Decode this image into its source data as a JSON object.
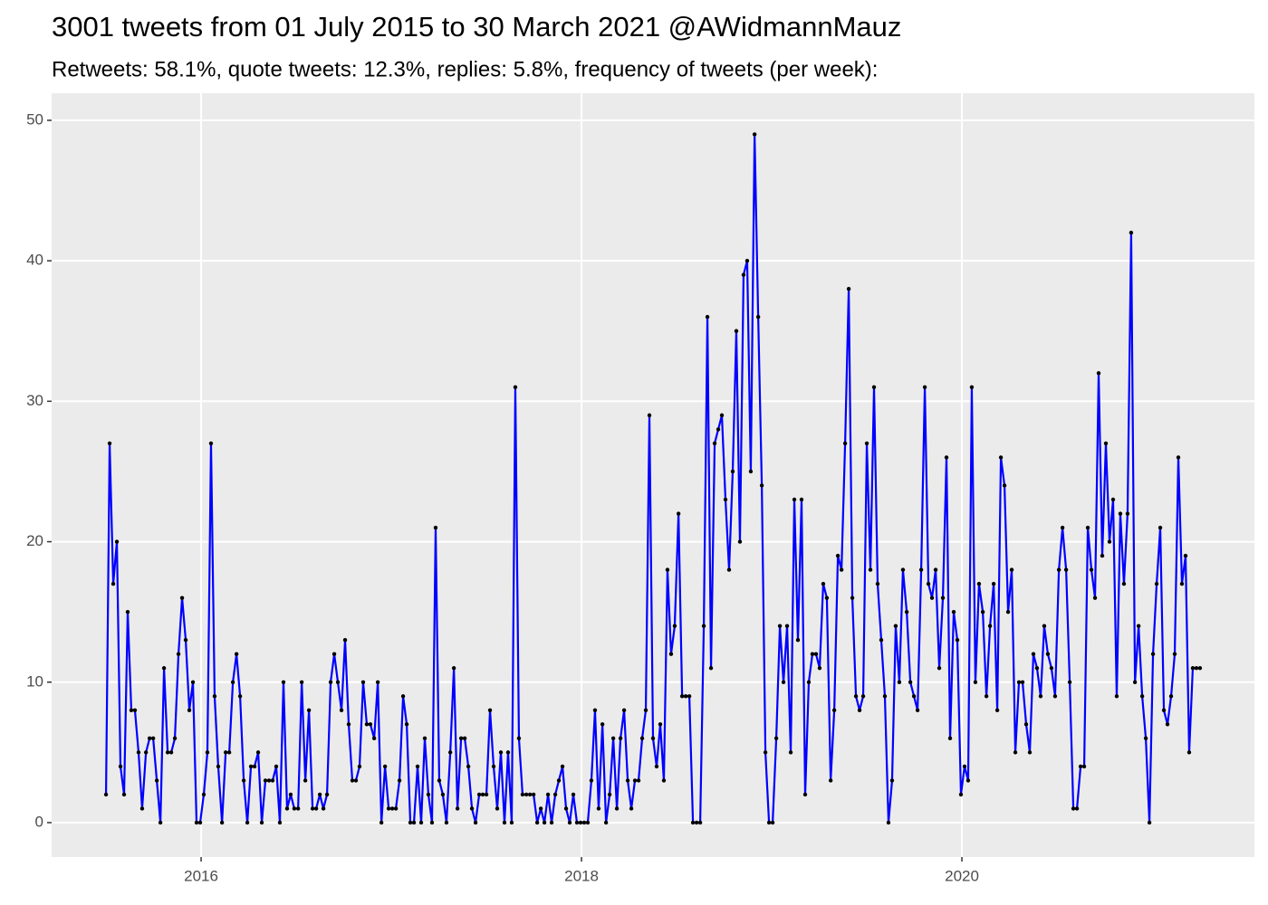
{
  "chart_data": {
    "type": "line",
    "title": "3001 tweets from 01 July 2015 to 30 March 2021 @AWidmannMauz",
    "subtitle": "Retweets: 58.1%, quote tweets: 12.3%, replies: 5.8%, frequency of tweets (per week):",
    "x": [
      2015.5,
      2015.519,
      2015.538,
      2015.557,
      2015.576,
      2015.595,
      2015.614,
      2015.633,
      2015.652,
      2015.671,
      2015.69,
      2015.71,
      2015.729,
      2015.748,
      2015.767,
      2015.786,
      2015.805,
      2015.824,
      2015.843,
      2015.862,
      2015.881,
      2015.9,
      2015.919,
      2015.938,
      2015.957,
      2015.976,
      2015.995,
      2016.014,
      2016.033,
      2016.052,
      2016.071,
      2016.09,
      2016.11,
      2016.129,
      2016.148,
      2016.167,
      2016.186,
      2016.205,
      2016.224,
      2016.243,
      2016.262,
      2016.281,
      2016.3,
      2016.319,
      2016.338,
      2016.357,
      2016.376,
      2016.395,
      2016.414,
      2016.433,
      2016.452,
      2016.471,
      2016.49,
      2016.51,
      2016.529,
      2016.548,
      2016.567,
      2016.586,
      2016.605,
      2016.624,
      2016.643,
      2016.662,
      2016.681,
      2016.7,
      2016.719,
      2016.738,
      2016.757,
      2016.776,
      2016.795,
      2016.814,
      2016.833,
      2016.852,
      2016.871,
      2016.89,
      2016.91,
      2016.929,
      2016.948,
      2016.967,
      2016.986,
      2017.005,
      2017.024,
      2017.043,
      2017.062,
      2017.081,
      2017.1,
      2017.119,
      2017.138,
      2017.157,
      2017.176,
      2017.195,
      2017.214,
      2017.233,
      2017.252,
      2017.271,
      2017.29,
      2017.31,
      2017.329,
      2017.348,
      2017.367,
      2017.386,
      2017.405,
      2017.424,
      2017.443,
      2017.462,
      2017.481,
      2017.5,
      2017.519,
      2017.538,
      2017.557,
      2017.576,
      2017.595,
      2017.614,
      2017.633,
      2017.652,
      2017.671,
      2017.69,
      2017.71,
      2017.729,
      2017.748,
      2017.767,
      2017.786,
      2017.805,
      2017.824,
      2017.843,
      2017.862,
      2017.881,
      2017.9,
      2017.919,
      2017.938,
      2017.957,
      2017.976,
      2017.995,
      2018.014,
      2018.033,
      2018.052,
      2018.071,
      2018.09,
      2018.11,
      2018.129,
      2018.148,
      2018.167,
      2018.186,
      2018.205,
      2018.224,
      2018.243,
      2018.262,
      2018.281,
      2018.3,
      2018.319,
      2018.338,
      2018.357,
      2018.376,
      2018.395,
      2018.414,
      2018.433,
      2018.452,
      2018.471,
      2018.49,
      2018.51,
      2018.529,
      2018.548,
      2018.567,
      2018.586,
      2018.605,
      2018.624,
      2018.643,
      2018.662,
      2018.681,
      2018.7,
      2018.719,
      2018.738,
      2018.757,
      2018.776,
      2018.795,
      2018.814,
      2018.833,
      2018.852,
      2018.871,
      2018.89,
      2018.91,
      2018.929,
      2018.948,
      2018.967,
      2018.986,
      2019.005,
      2019.024,
      2019.043,
      2019.062,
      2019.081,
      2019.1,
      2019.119,
      2019.138,
      2019.157,
      2019.176,
      2019.195,
      2019.214,
      2019.233,
      2019.252,
      2019.271,
      2019.29,
      2019.31,
      2019.329,
      2019.348,
      2019.367,
      2019.386,
      2019.405,
      2019.424,
      2019.443,
      2019.462,
      2019.481,
      2019.5,
      2019.519,
      2019.538,
      2019.557,
      2019.576,
      2019.595,
      2019.614,
      2019.633,
      2019.652,
      2019.671,
      2019.69,
      2019.71,
      2019.729,
      2019.748,
      2019.767,
      2019.786,
      2019.805,
      2019.824,
      2019.843,
      2019.862,
      2019.881,
      2019.9,
      2019.919,
      2019.938,
      2019.957,
      2019.976,
      2019.995,
      2020.014,
      2020.033,
      2020.052,
      2020.071,
      2020.09,
      2020.11,
      2020.129,
      2020.148,
      2020.167,
      2020.186,
      2020.205,
      2020.224,
      2020.243,
      2020.262,
      2020.281,
      2020.3,
      2020.319,
      2020.338,
      2020.357,
      2020.376,
      2020.395,
      2020.414,
      2020.433,
      2020.452,
      2020.471,
      2020.49,
      2020.51,
      2020.529,
      2020.548,
      2020.567,
      2020.586,
      2020.605,
      2020.624,
      2020.643,
      2020.662,
      2020.681,
      2020.7,
      2020.719,
      2020.738,
      2020.757,
      2020.776,
      2020.795,
      2020.814,
      2020.833,
      2020.852,
      2020.871,
      2020.89,
      2020.91,
      2020.929,
      2020.948,
      2020.967,
      2020.986,
      2021.005,
      2021.024,
      2021.043,
      2021.062,
      2021.081,
      2021.1,
      2021.119,
      2021.138,
      2021.157,
      2021.176,
      2021.195,
      2021.214,
      2021.233,
      2021.252
    ],
    "values": [
      2,
      27,
      17,
      20,
      4,
      2,
      15,
      8,
      8,
      5,
      1,
      5,
      6,
      6,
      3,
      0,
      11,
      5,
      5,
      6,
      12,
      16,
      13,
      8,
      10,
      0,
      0,
      2,
      5,
      27,
      9,
      4,
      0,
      5,
      5,
      10,
      12,
      9,
      3,
      0,
      4,
      4,
      5,
      0,
      3,
      3,
      3,
      4,
      0,
      10,
      1,
      2,
      1,
      1,
      10,
      3,
      8,
      1,
      1,
      2,
      1,
      2,
      10,
      12,
      10,
      8,
      13,
      7,
      3,
      3,
      4,
      10,
      7,
      7,
      6,
      10,
      0,
      4,
      1,
      1,
      1,
      3,
      9,
      7,
      0,
      0,
      4,
      0,
      6,
      2,
      0,
      21,
      3,
      2,
      0,
      5,
      11,
      1,
      6,
      6,
      4,
      1,
      0,
      2,
      2,
      2,
      8,
      4,
      1,
      5,
      0,
      5,
      0,
      31,
      6,
      2,
      2,
      2,
      2,
      0,
      1,
      0,
      2,
      0,
      2,
      3,
      4,
      1,
      0,
      2,
      0,
      0,
      0,
      0,
      3,
      8,
      1,
      7,
      0,
      2,
      6,
      1,
      6,
      8,
      3,
      1,
      3,
      3,
      6,
      8,
      29,
      6,
      4,
      7,
      3,
      18,
      12,
      14,
      22,
      9,
      9,
      9,
      0,
      0,
      0,
      14,
      36,
      11,
      27,
      28,
      29,
      23,
      18,
      25,
      35,
      20,
      39,
      40,
      25,
      49,
      36,
      24,
      5,
      0,
      0,
      6,
      14,
      10,
      14,
      5,
      23,
      13,
      23,
      2,
      10,
      12,
      12,
      11,
      17,
      16,
      3,
      8,
      19,
      18,
      27,
      38,
      16,
      9,
      8,
      9,
      27,
      18,
      31,
      17,
      13,
      9,
      0,
      3,
      14,
      10,
      18,
      15,
      10,
      9,
      8,
      18,
      31,
      17,
      16,
      18,
      11,
      16,
      26,
      6,
      15,
      13,
      2,
      4,
      3,
      31,
      10,
      17,
      15,
      9,
      14,
      17,
      8,
      26,
      24,
      15,
      18,
      5,
      10,
      10,
      7,
      5,
      12,
      11,
      9,
      14,
      12,
      11,
      9,
      18,
      21,
      18,
      10,
      1,
      1,
      4,
      4,
      21,
      18,
      16,
      32,
      19,
      27,
      20,
      23,
      9,
      22,
      17,
      22,
      42,
      10,
      14,
      9,
      6,
      0,
      12,
      17,
      21,
      8,
      7,
      9,
      12,
      26,
      17,
      19,
      5,
      11,
      11,
      11
    ],
    "color": "#0000ff",
    "point_color": "#000000",
    "xlim": [
      2015.214,
      2021.538
    ],
    "xticks": [
      2016,
      2018,
      2020
    ],
    "ylim": [
      -2.45,
      51.93
    ],
    "yticks": [
      0,
      10,
      20,
      30,
      40,
      50
    ],
    "grid": true
  }
}
